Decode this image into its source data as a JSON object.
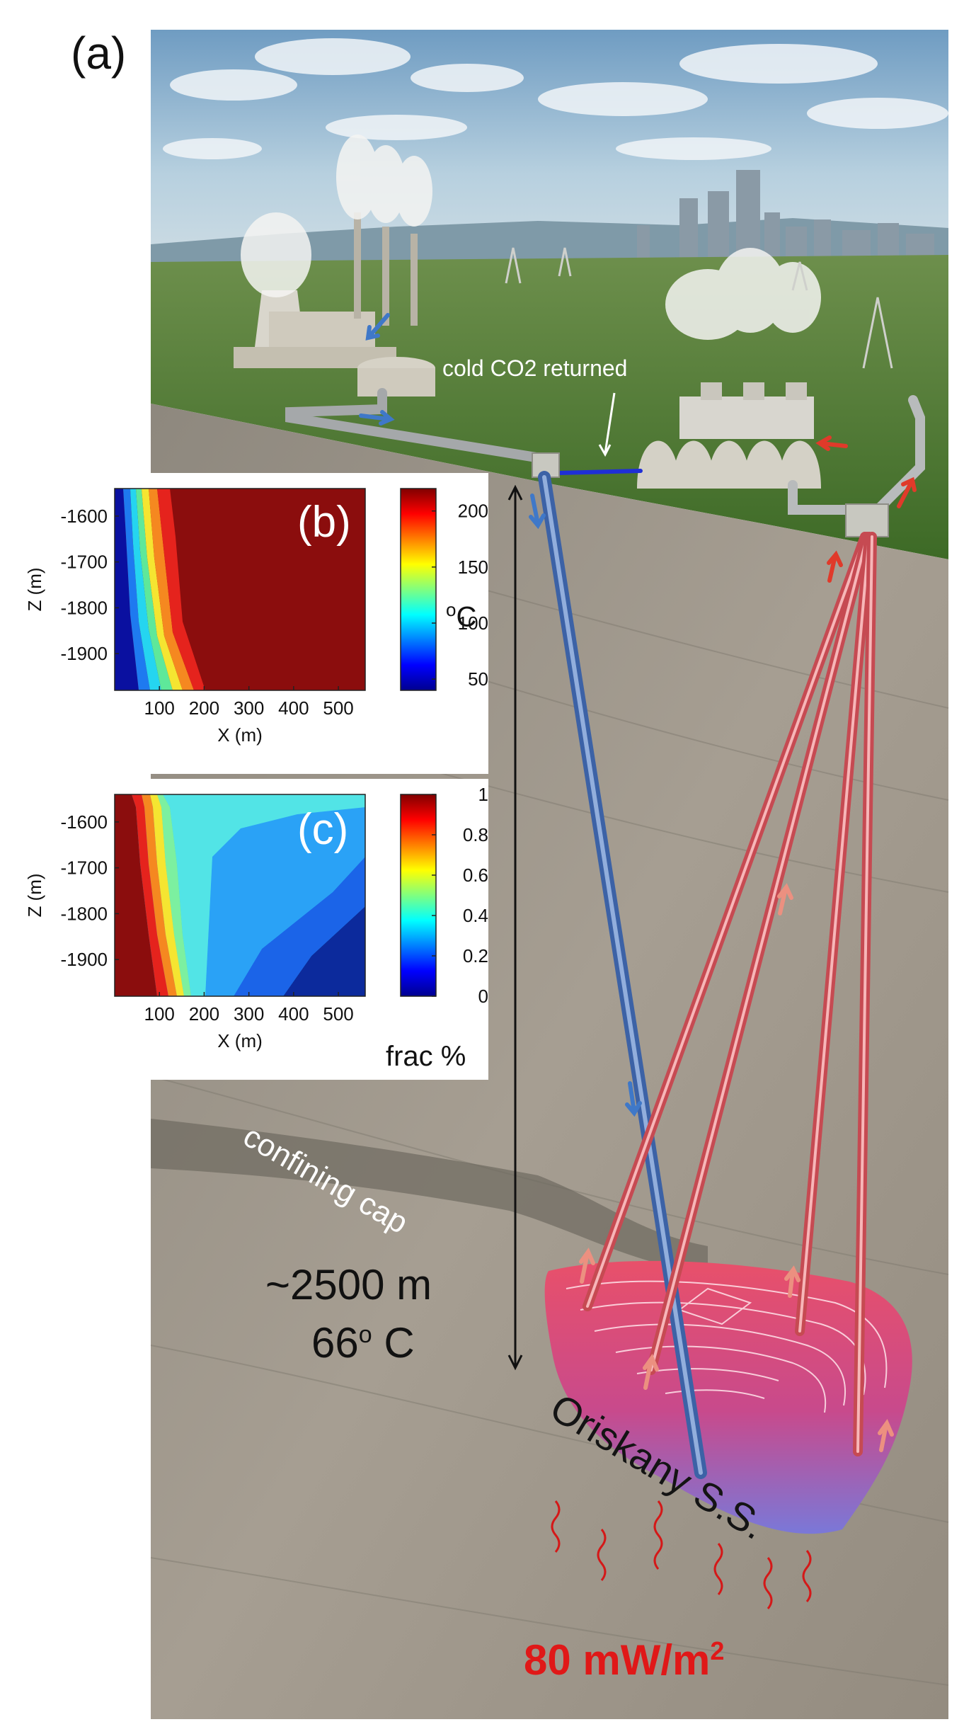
{
  "panel_labels": {
    "a": "(a)",
    "b": "(b)",
    "c": "(c)"
  },
  "annotations": {
    "cold_co2": "cold CO2 returned",
    "confining_cap": "confining cap",
    "depth": "~2500 m",
    "temp_main": "66",
    "temp_sup": "o",
    "temp_unit": " C",
    "reservoir": "Oriskany S.S.",
    "heat_flux_main": "80 mW/m",
    "heat_flux_sup": "2"
  },
  "colors": {
    "sky": "#a9c8dd",
    "ground": "#4f7a32",
    "rock": "#9a9288",
    "injection_well": "#5a86c8",
    "production_well": "#d95a60",
    "arrow_blue": "#3f78c8",
    "arrow_red": "#e03a2a",
    "heat_flux_text": "#e01818"
  },
  "chart_data": [
    {
      "panel": "b",
      "type": "heatmap",
      "xlabel": "X (m)",
      "ylabel": "Z (m)",
      "xticks": [
        "100",
        "200",
        "300",
        "400",
        "500"
      ],
      "yticks": [
        "-1600",
        "-1700",
        "-1800",
        "-1900"
      ],
      "xlim": [
        0,
        560
      ],
      "ylim": [
        -1980,
        -1540
      ],
      "colorbar_ticks": [
        "200",
        "150",
        "100",
        "50"
      ],
      "colorbar_range": [
        40,
        220
      ],
      "colorbar_label": "oC",
      "unit_super": "o",
      "unit_main": "C"
    },
    {
      "panel": "c",
      "type": "heatmap",
      "xlabel": "X (m)",
      "ylabel": "Z (m)",
      "xticks": [
        "100",
        "200",
        "300",
        "400",
        "500"
      ],
      "yticks": [
        "-1600",
        "-1700",
        "-1800",
        "-1900"
      ],
      "xlim": [
        0,
        560
      ],
      "ylim": [
        -1980,
        -1540
      ],
      "colorbar_ticks": [
        "1",
        "0.8",
        "0.6",
        "0.4",
        "0.2",
        "0"
      ],
      "colorbar_range": [
        0,
        1
      ],
      "colorbar_label": "frac %"
    }
  ]
}
